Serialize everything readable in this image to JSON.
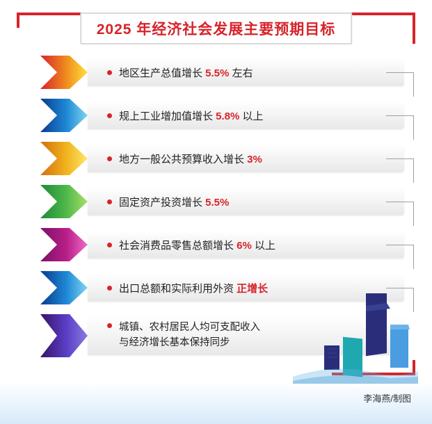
{
  "title": "2025 年经济社会发展主要预期目标",
  "arrows": [
    {
      "stops": [
        "#d7232a",
        "#f08c1e",
        "#ffe13a"
      ]
    },
    {
      "stops": [
        "#0a3b8f",
        "#1e88d6",
        "#7fd6f0"
      ]
    },
    {
      "stops": [
        "#d46f10",
        "#f0b31e",
        "#ffe76a"
      ]
    },
    {
      "stops": [
        "#1e8a3a",
        "#4fb84a",
        "#a8e06a"
      ]
    },
    {
      "stops": [
        "#7a1266",
        "#b81e88",
        "#f06ac8"
      ]
    },
    {
      "stops": [
        "#0a3b8f",
        "#1e88d6",
        "#7fd6f0"
      ]
    },
    {
      "stops": [
        "#3a1266",
        "#5a3ec6",
        "#8a7ae0"
      ]
    }
  ],
  "items": [
    {
      "pre": "地区生产总值增长 ",
      "hl": "5.5%",
      "post": " 左右",
      "conn": true
    },
    {
      "pre": "规上工业增加值增长 ",
      "hl": "5.8%",
      "post": " 以上",
      "conn": true
    },
    {
      "pre": "地方一般公共预算收入增长 ",
      "hl": "3%",
      "post": "",
      "conn": true
    },
    {
      "pre": "固定资产投资增长 ",
      "hl": "5.5%",
      "post": "",
      "conn": true
    },
    {
      "pre": "社会消费品零售总额增长 ",
      "hl": "6%",
      "post": " 以上",
      "conn": true
    },
    {
      "pre": "出口总额和实际利用外资 ",
      "hl": "正增长",
      "post": "",
      "conn": true
    }
  ],
  "wide_item": {
    "line1": "城镇、农村居民人均可支配收入",
    "line2": "与经济增长基本保持同步"
  },
  "credit": "李海燕/制图",
  "bullet_color": "#d7232a",
  "highlight_color": "#d7232a",
  "bar_gradient": [
    "#ffffff",
    "#e8e8e8"
  ],
  "city_colors": {
    "main": "#2a2e7a",
    "accent": "#4a9de0",
    "teal": "#1fa8b0"
  }
}
